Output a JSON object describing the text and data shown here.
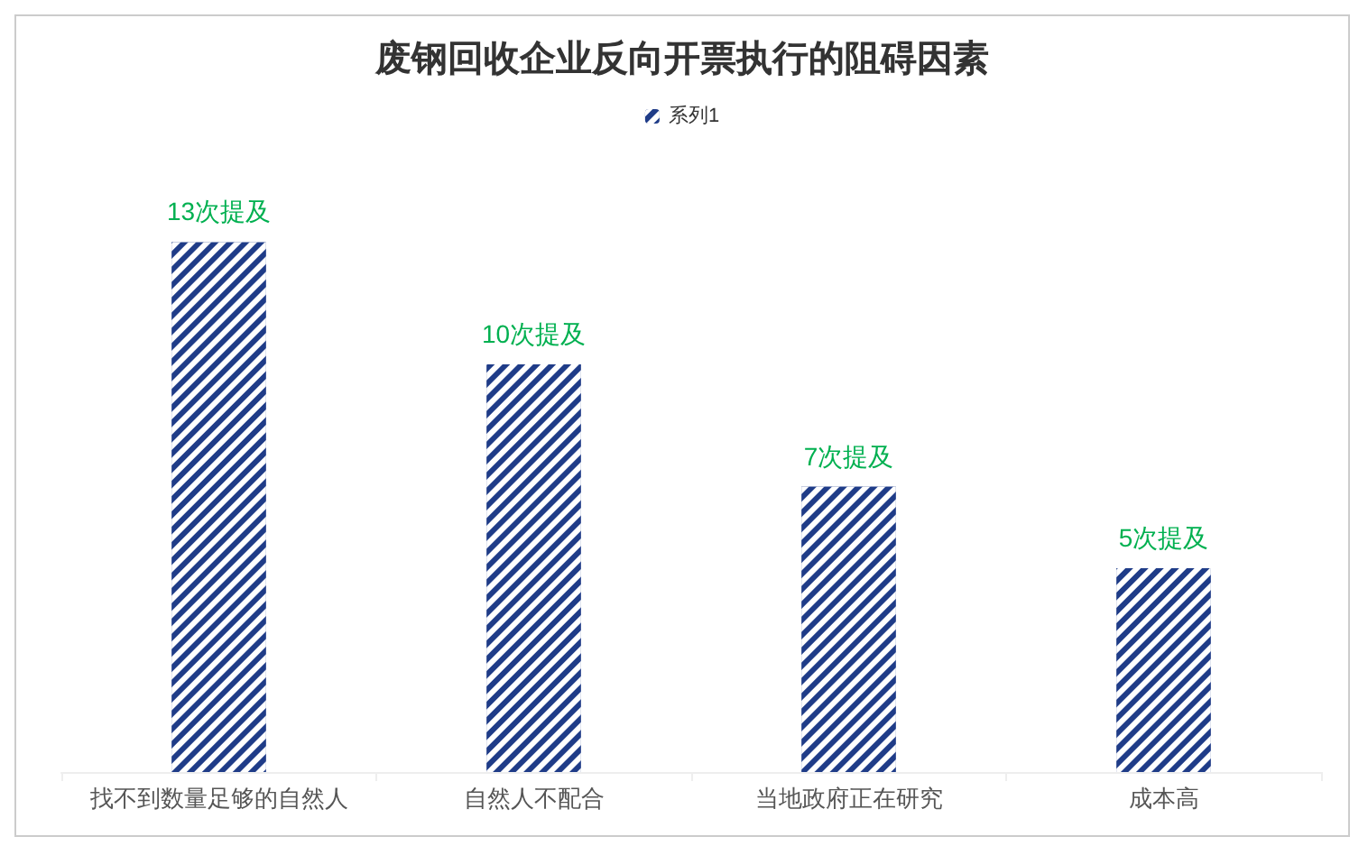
{
  "chart_data": {
    "type": "bar",
    "title": "废钢回收企业反向开票执行的阻碍因素",
    "categories": [
      "找不到数量足够的自然人",
      "自然人不配合",
      "当地政府正在研究",
      "成本高"
    ],
    "series": [
      {
        "name": "系列1",
        "color": "#1f3c88",
        "values": [
          13,
          10,
          7,
          5
        ],
        "value_labels": [
          "13次提及",
          "10次提及",
          "7次提及",
          "5次提及"
        ]
      }
    ],
    "legend": "top",
    "grid": false
  }
}
